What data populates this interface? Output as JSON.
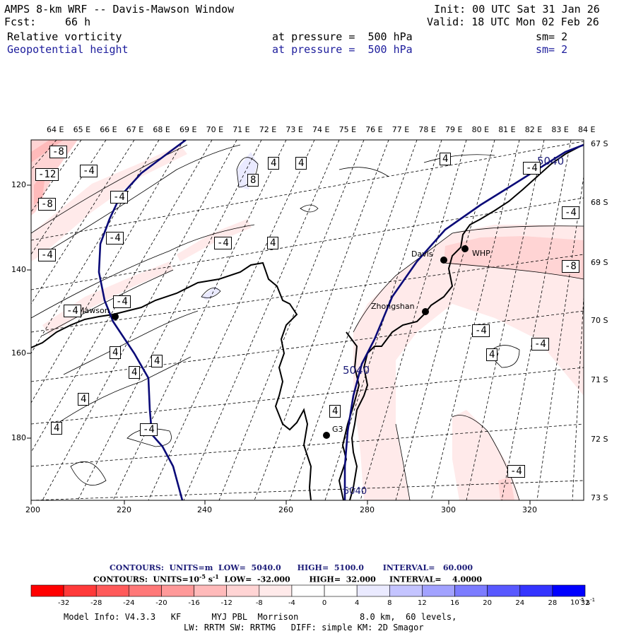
{
  "header": {
    "title": "AMPS 8-km WRF -- Davis-Mawson Window",
    "init": "Init: 00 UTC Sat 31 Jan 26",
    "fcst_label": "Fcst:",
    "fcst_value": "66 h",
    "valid": "Valid: 18 UTC Mon 02 Feb 26",
    "field1": {
      "name": "Relative vorticity",
      "level": "at pressure =  500 hPa",
      "sm": "sm= 2"
    },
    "field2": {
      "name": "Geopotential height",
      "level": "at pressure =  500 hPa",
      "sm": "sm= 2"
    }
  },
  "map": {
    "top_lon_labels": [
      "64 E",
      "65 E",
      "66 E",
      "67 E",
      "68 E",
      "69 E",
      "70 E",
      "71 E",
      "72 E",
      "73 E",
      "74 E",
      "75 E",
      "76 E",
      "77 E",
      "78 E",
      "79 E",
      "80 E",
      "81 E",
      "82 E",
      "83 E",
      "84 E"
    ],
    "right_lat_labels": [
      "67 S",
      "68 S",
      "69 S",
      "70 S",
      "71 S",
      "72 S",
      "73 S"
    ],
    "bottom_x_labels": [
      "200",
      "220",
      "240",
      "260",
      "280",
      "300",
      "320"
    ],
    "left_y_labels": [
      "120",
      "140",
      "160",
      "180"
    ],
    "stations": [
      {
        "name": "Mawson"
      },
      {
        "name": "Davis"
      },
      {
        "name": "WHP"
      },
      {
        "name": "Zhongshan"
      },
      {
        "name": "G3"
      }
    ],
    "height_labels": [
      "5040",
      "5040",
      "5040"
    ],
    "vorticity_labels": [
      "-8",
      "-12",
      "-4",
      "-8",
      "-4",
      "-4",
      "-4",
      "8",
      "4",
      "4",
      "4",
      "-4",
      "-4",
      "4",
      "-4",
      "-8",
      "-4",
      "-4",
      "-4",
      "4",
      "4",
      "4",
      "4",
      "4",
      "4",
      "-4",
      "-4",
      "4",
      "-4",
      "-4",
      "-4",
      "4"
    ]
  },
  "contours_info": {
    "line1": "CONTOURS:  UNITS=m  LOW=  5040.0      HIGH=  5100.0       INTERVAL=   60.000",
    "line2_prefix": "CONTOURS:  UNITS=10",
    "line2_exp": "-5",
    "line2_mid": " s",
    "line2_exp2": "-1",
    "line2_suffix": "  LOW=  -32.000       HIGH=  32.000     INTERVAL=    4.0000"
  },
  "colorbar": {
    "labels": [
      "-32",
      "-28",
      "-24",
      "-20",
      "-16",
      "-12",
      "-8",
      "-4",
      "0",
      "4",
      "8",
      "12",
      "16",
      "20",
      "24",
      "28",
      "32"
    ],
    "unit": "10",
    "unit_exp": "-5",
    "unit_s": "s",
    "unit_s_exp": "-1",
    "colors": [
      "#ff0000",
      "#ff3a3a",
      "#ff5a5a",
      "#ff7878",
      "#ff9999",
      "#ffbaba",
      "#ffd4d4",
      "#ffeaea",
      "#ffffff",
      "#ffffff",
      "#eaeaff",
      "#c4c4ff",
      "#a2a2ff",
      "#7c7cff",
      "#5858ff",
      "#3434ff",
      "#0000ff"
    ]
  },
  "model_info": {
    "line1": "Model Info: V4.3.3   KF      MYJ PBL  Morrison            8.0 km,  60 levels,",
    "line2": "LW: RRTM SW: RRTMG   DIFF: simple KM: 2D Smagor"
  }
}
